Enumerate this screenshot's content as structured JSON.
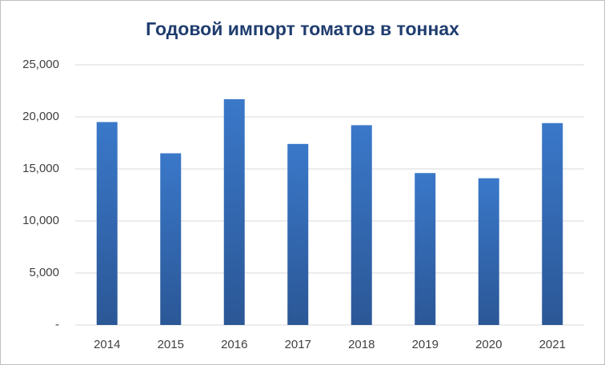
{
  "chart_data": {
    "type": "bar",
    "title": "Годовой импорт томатов в тоннах",
    "categories": [
      "2014",
      "2015",
      "2016",
      "2017",
      "2018",
      "2019",
      "2020",
      "2021"
    ],
    "values": [
      19500,
      16500,
      21700,
      17400,
      19200,
      14600,
      14100,
      19400
    ],
    "color": "#3a78c9",
    "ylim": [
      0,
      25000
    ],
    "yticks": [
      {
        "value": 0,
        "label": "-"
      },
      {
        "value": 5000,
        "label": "5,000"
      },
      {
        "value": 10000,
        "label": "10,000"
      },
      {
        "value": 15000,
        "label": "15,000"
      },
      {
        "value": 20000,
        "label": "20,000"
      },
      {
        "value": 25000,
        "label": "25,000"
      }
    ],
    "grid": true
  }
}
